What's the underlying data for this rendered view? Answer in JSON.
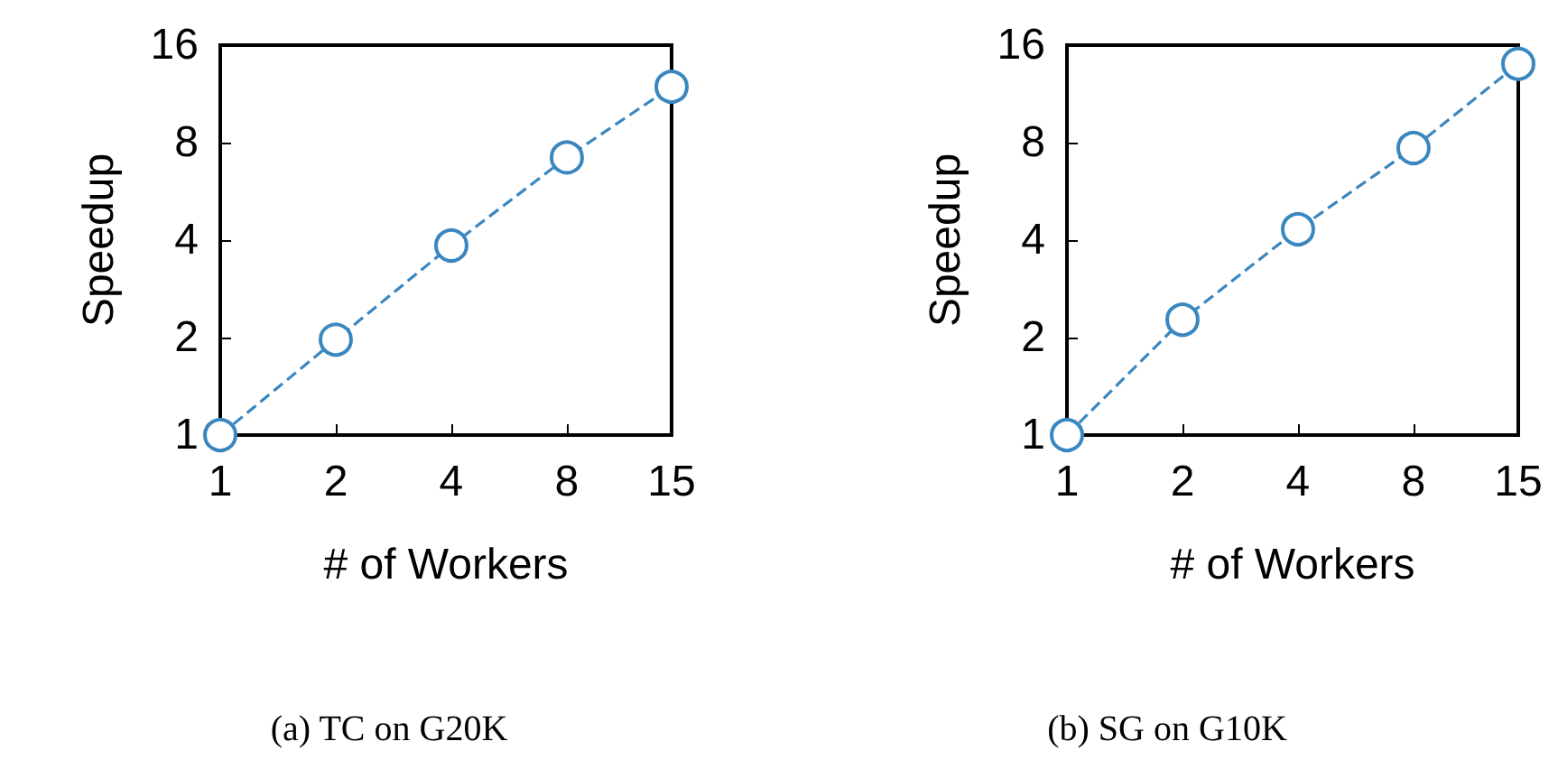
{
  "chart_data": [
    {
      "type": "line",
      "title": "(a) TC on G20K",
      "xlabel": "# of Workers",
      "ylabel": "Speedup",
      "x": [
        1,
        2,
        4,
        8,
        15
      ],
      "series": [
        {
          "color": "#3a87c0",
          "values": [
            1,
            1.97,
            3.85,
            7.2,
            11.9
          ]
        }
      ],
      "xlim": [
        1,
        15
      ],
      "ylim": [
        1,
        16
      ],
      "xticks": [
        1,
        2,
        4,
        8,
        15
      ],
      "yticks": [
        1,
        2,
        4,
        8,
        16
      ],
      "log": "xy",
      "marker": "circle",
      "line_style": "dashed",
      "grid": false
    },
    {
      "type": "line",
      "title": "(b) SG on G10K",
      "xlabel": "# of Workers",
      "ylabel": "Speedup",
      "x": [
        1,
        2,
        4,
        8,
        15
      ],
      "series": [
        {
          "color": "#3a87c0",
          "values": [
            1,
            2.27,
            4.32,
            7.7,
            14.0
          ]
        }
      ],
      "xlim": [
        1,
        15
      ],
      "ylim": [
        1,
        16
      ],
      "xticks": [
        1,
        2,
        4,
        8,
        15
      ],
      "yticks": [
        1,
        2,
        4,
        8,
        16
      ],
      "log": "xy",
      "marker": "circle",
      "line_style": "dashed",
      "grid": false
    }
  ]
}
